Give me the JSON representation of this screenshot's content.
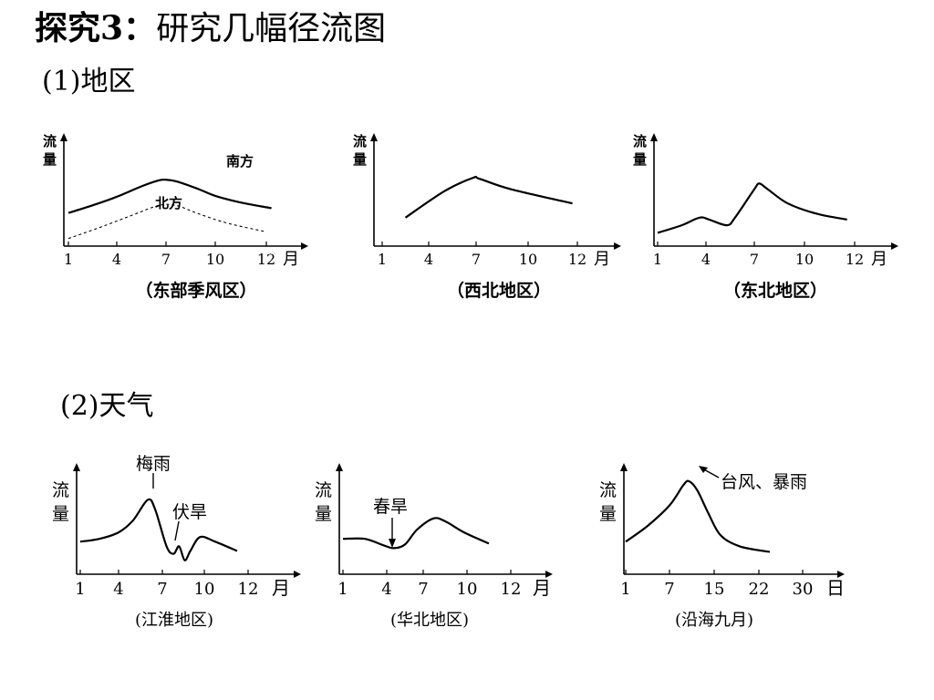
{
  "page": {
    "title_bold": "探究3：",
    "title_rest": "研究几幅径流图",
    "section1": "(1)地区",
    "section2": "(2)天气"
  },
  "chart_data": [
    {
      "type": "line",
      "ylabel": "流量",
      "xunit": "月",
      "x_ticks": [
        "1",
        "4",
        "7",
        "10",
        "12"
      ],
      "caption": "（东部季风区）",
      "series": [
        {
          "name": "南方",
          "style": "solid",
          "points": [
            [
              1,
              35
            ],
            [
              2.5,
              43
            ],
            [
              4,
              52
            ],
            [
              5.5,
              63
            ],
            [
              6.5,
              69
            ],
            [
              7,
              70
            ],
            [
              7.7,
              68
            ],
            [
              9,
              60
            ],
            [
              10,
              53
            ],
            [
              11,
              46
            ],
            [
              12.2,
              40
            ]
          ]
        },
        {
          "name": "北方",
          "style": "dashed",
          "points": [
            [
              1,
              8
            ],
            [
              3,
              20
            ],
            [
              5,
              33
            ],
            [
              6.2,
              41
            ],
            [
              7,
              44
            ],
            [
              7.8,
              42
            ],
            [
              9,
              34
            ],
            [
              10.5,
              24
            ],
            [
              12,
              15
            ]
          ]
        }
      ]
    },
    {
      "type": "line",
      "ylabel": "流量",
      "xunit": "月",
      "x_ticks": [
        "1",
        "4",
        "7",
        "10",
        "12"
      ],
      "caption": "（西北地区）",
      "series": [
        {
          "style": "solid",
          "points": [
            [
              2.5,
              30
            ],
            [
              5,
              58
            ],
            [
              6.8,
              72
            ],
            [
              7.2,
              71
            ],
            [
              9,
              60
            ],
            [
              11.8,
              45
            ]
          ]
        }
      ]
    },
    {
      "type": "line",
      "ylabel": "流量",
      "xunit": "月",
      "x_ticks": [
        "1",
        "4",
        "7",
        "10",
        "12"
      ],
      "caption": "（东北地区）",
      "series": [
        {
          "style": "solid",
          "points": [
            [
              1,
              14
            ],
            [
              2.5,
              22
            ],
            [
              3.6,
              30
            ],
            [
              4.2,
              28
            ],
            [
              5.3,
              22
            ],
            [
              5.8,
              30
            ],
            [
              7,
              60
            ],
            [
              7.3,
              66
            ],
            [
              7.8,
              60
            ],
            [
              9,
              45
            ],
            [
              10.5,
              34
            ],
            [
              11.7,
              28
            ]
          ]
        }
      ]
    },
    {
      "type": "line",
      "ylabel": "流量",
      "xunit": "月",
      "x_ticks": [
        "1",
        "4",
        "7",
        "10",
        "12"
      ],
      "caption": "(江淮地区)",
      "annotations": [
        "梅雨",
        "伏旱"
      ],
      "series": [
        {
          "style": "solid",
          "points": [
            [
              1,
              35
            ],
            [
              2.5,
              38
            ],
            [
              4,
              45
            ],
            [
              5,
              58
            ],
            [
              6,
              80
            ],
            [
              6.5,
              70
            ],
            [
              7.3,
              30
            ],
            [
              7.8,
              22
            ],
            [
              8.2,
              30
            ],
            [
              8.6,
              15
            ],
            [
              9,
              25
            ],
            [
              9.7,
              40
            ],
            [
              10.5,
              35
            ],
            [
              11.5,
              25
            ]
          ]
        }
      ]
    },
    {
      "type": "line",
      "ylabel": "流量",
      "xunit": "月",
      "x_ticks": [
        "1",
        "4",
        "7",
        "10",
        "12"
      ],
      "caption": "(华北地区)",
      "annotations": [
        "春旱"
      ],
      "series": [
        {
          "style": "solid",
          "points": [
            [
              1,
              38
            ],
            [
              2.5,
              38
            ],
            [
              3.8,
              31
            ],
            [
              4.6,
              28
            ],
            [
              5.5,
              32
            ],
            [
              6.5,
              48
            ],
            [
              7.7,
              60
            ],
            [
              8.5,
              57
            ],
            [
              9.8,
              45
            ],
            [
              11,
              33
            ]
          ]
        }
      ]
    },
    {
      "type": "line",
      "ylabel": "流量",
      "xunit": "日",
      "x_ticks": [
        "1",
        "7",
        "15",
        "22",
        "30"
      ],
      "caption": "(沿海九月)",
      "annotations": [
        "台风、暴雨"
      ],
      "series": [
        {
          "style": "solid",
          "points": [
            [
              1,
              35
            ],
            [
              4,
              52
            ],
            [
              7,
              74
            ],
            [
              9.5,
              96
            ],
            [
              10.5,
              100
            ],
            [
              12,
              90
            ],
            [
              14,
              65
            ],
            [
              16,
              42
            ],
            [
              19,
              30
            ],
            [
              24,
              24
            ]
          ]
        }
      ]
    }
  ]
}
